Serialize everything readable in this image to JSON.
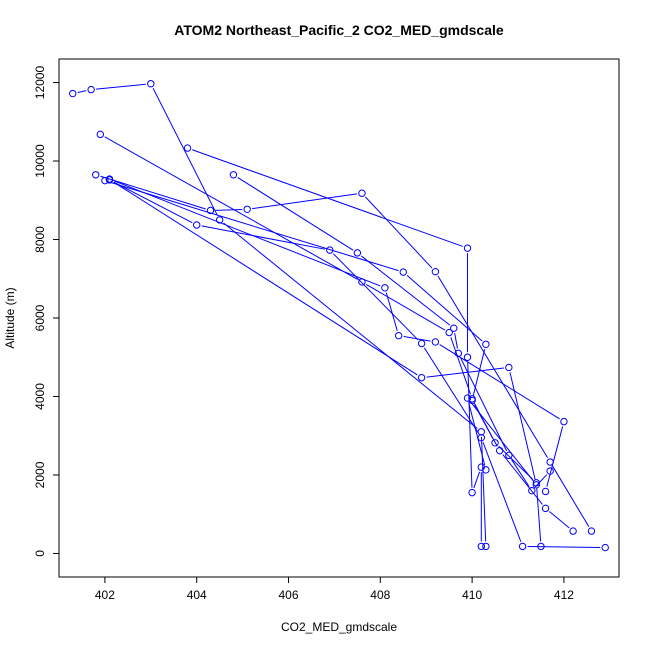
{
  "chart_data": {
    "type": "line",
    "title": "ATOM2 Northeast_Pacific_2 CO2_MED_gmdscale",
    "xlabel": "CO2_MED_gmdscale",
    "ylabel": "Altitude (m)",
    "xlim": [
      401.0,
      413.2
    ],
    "ylim": [
      -600,
      12600
    ],
    "xticks": [
      402,
      404,
      406,
      408,
      410,
      412
    ],
    "xtick_labels": [
      "402",
      "404",
      "406",
      "408",
      "410",
      "412"
    ],
    "yticks": [
      0,
      2000,
      4000,
      6000,
      8000,
      10000,
      12000
    ],
    "ytick_labels": [
      "0",
      "2000",
      "4000",
      "6000",
      "8000",
      "10000",
      "12000"
    ],
    "grid": false,
    "legend": "none",
    "color": "#0000ff",
    "marker": "open-circle",
    "series": [
      {
        "x": [
          401.3,
          401.7,
          403.0,
          404.5,
          410.2,
          410.3
        ],
        "y": [
          11720,
          11820,
          11970,
          8500,
          3100,
          180
        ]
      },
      {
        "x": [
          401.9,
          407.6,
          409.5,
          410.0,
          410.5,
          411.4,
          411.5
        ],
        "y": [
          10680,
          6920,
          5630,
          3940,
          2820,
          1800,
          180
        ]
      },
      {
        "x": [
          401.8,
          404.3,
          405.1,
          407.6,
          409.2,
          411.7,
          412.6
        ],
        "y": [
          9650,
          8740,
          8770,
          9180,
          7180,
          2330,
          570
        ]
      },
      {
        "x": [
          402.1,
          404.0,
          406.9,
          408.9,
          410.2,
          411.1,
          412.9
        ],
        "y": [
          9520,
          8370,
          7730,
          5350,
          2950,
          180,
          150
        ]
      },
      {
        "x": [
          403.8,
          409.9,
          409.9,
          410.0,
          410.2,
          410.2
        ],
        "y": [
          10330,
          7780,
          5000,
          1550,
          2200,
          180
        ]
      },
      {
        "x": [
          404.8,
          407.5,
          409.6,
          409.7,
          410.8,
          411.3,
          411.7
        ],
        "y": [
          9650,
          7660,
          5740,
          5100,
          2500,
          1600,
          2100
        ]
      },
      {
        "x": [
          402.0,
          408.5,
          410.3,
          410.0,
          410.6,
          411.6,
          412.2
        ],
        "y": [
          9500,
          7170,
          5330,
          3900,
          2620,
          1150,
          570
        ]
      },
      {
        "x": [
          402.1,
          408.9,
          410.8,
          411.4,
          409.9,
          410.3
        ],
        "y": [
          9530,
          4480,
          4740,
          1750,
          3960,
          2130
        ]
      },
      {
        "x": [
          402.1,
          408.1,
          408.4,
          409.2,
          412.0,
          411.6
        ],
        "y": [
          9540,
          6770,
          5550,
          5390,
          3360,
          1580
        ]
      }
    ]
  }
}
